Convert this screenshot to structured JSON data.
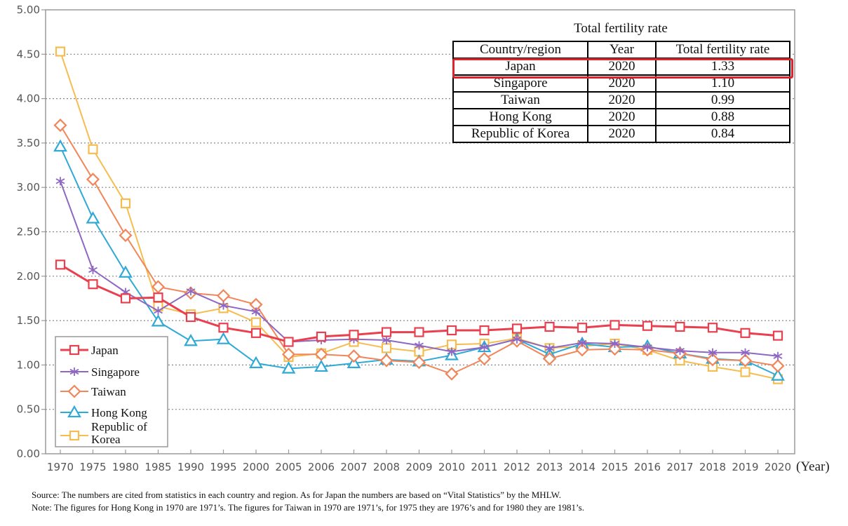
{
  "chart_data": {
    "type": "line",
    "xlabel": "(Year)",
    "ylim": [
      0,
      5
    ],
    "yticks": [
      "0.00",
      "0.50",
      "1.00",
      "1.50",
      "2.00",
      "2.50",
      "3.00",
      "3.50",
      "4.00",
      "4.50",
      "5.00"
    ],
    "x": [
      "1970",
      "1975",
      "1980",
      "1985",
      "1990",
      "1995",
      "2000",
      "2005",
      "2006",
      "2007",
      "2008",
      "2009",
      "2010",
      "2011",
      "2012",
      "2013",
      "2014",
      "2015",
      "2016",
      "2017",
      "2018",
      "2019",
      "2020"
    ],
    "grid": "horizontal dotted",
    "legend_position": "bottom-left",
    "series": [
      {
        "name": "Japan",
        "color": "#e8404f",
        "marker": "square",
        "values": [
          2.13,
          1.91,
          1.75,
          1.76,
          1.54,
          1.42,
          1.36,
          1.26,
          1.32,
          1.34,
          1.37,
          1.37,
          1.39,
          1.39,
          1.41,
          1.43,
          1.42,
          1.45,
          1.44,
          1.43,
          1.42,
          1.36,
          1.33
        ]
      },
      {
        "name": "Singapore",
        "color": "#8e67c2",
        "marker": "star",
        "values": [
          3.07,
          2.07,
          1.82,
          1.61,
          1.83,
          1.67,
          1.6,
          1.26,
          1.28,
          1.29,
          1.28,
          1.22,
          1.15,
          1.2,
          1.29,
          1.19,
          1.25,
          1.24,
          1.2,
          1.16,
          1.14,
          1.14,
          1.1
        ]
      },
      {
        "name": "Taiwan",
        "color": "#f0865a",
        "marker": "diamond",
        "values": [
          3.7,
          3.09,
          2.46,
          1.88,
          1.81,
          1.78,
          1.68,
          1.12,
          1.12,
          1.1,
          1.05,
          1.03,
          0.9,
          1.07,
          1.27,
          1.07,
          1.17,
          1.18,
          1.17,
          1.13,
          1.06,
          1.05,
          0.99
        ]
      },
      {
        "name": "Hong Kong",
        "color": "#2fa9d6",
        "marker": "triangle",
        "values": [
          3.46,
          2.65,
          2.04,
          1.49,
          1.27,
          1.29,
          1.02,
          0.96,
          0.98,
          1.02,
          1.06,
          1.04,
          1.11,
          1.2,
          1.29,
          1.12,
          1.24,
          1.2,
          1.21,
          1.13,
          1.07,
          1.05,
          0.88
        ]
      },
      {
        "name": "Republic of Korea",
        "color": "#f5bd50",
        "marker": "square",
        "values": [
          4.53,
          3.43,
          2.82,
          1.66,
          1.57,
          1.64,
          1.48,
          1.09,
          1.13,
          1.26,
          1.19,
          1.15,
          1.23,
          1.24,
          1.3,
          1.19,
          1.21,
          1.24,
          1.17,
          1.05,
          0.98,
          0.92,
          0.84
        ]
      }
    ],
    "legend": [
      "Japan",
      "Singapore",
      "Taiwan",
      "Hong Kong",
      "Republic of\nKorea"
    ]
  },
  "inset_table": {
    "title": "Total fertility rate",
    "headers": [
      "Country/region",
      "Year",
      "Total fertility rate"
    ],
    "rows": [
      {
        "country": "Japan",
        "year": "2020",
        "rate": "1.33",
        "highlighted": true
      },
      {
        "country": "Singapore",
        "year": "2020",
        "rate": "1.10"
      },
      {
        "country": "Taiwan",
        "year": "2020",
        "rate": "0.99"
      },
      {
        "country": "Hong Kong",
        "year": "2020",
        "rate": "0.88"
      },
      {
        "country": "Republic of Korea",
        "year": "2020",
        "rate": "0.84"
      }
    ],
    "highlight_color": "#e0222c"
  },
  "notes": {
    "source": "Source: The numbers are cited from statistics in each country and region. As for Japan the numbers are based on “Vital Statistics” by the MHLW.",
    "note": "Note: The figures for Hong Kong in 1970 are 1971’s. The figures for Taiwan in 1970 are 1971’s, for 1975 they are 1976’s and for 1980 they are 1981’s."
  }
}
